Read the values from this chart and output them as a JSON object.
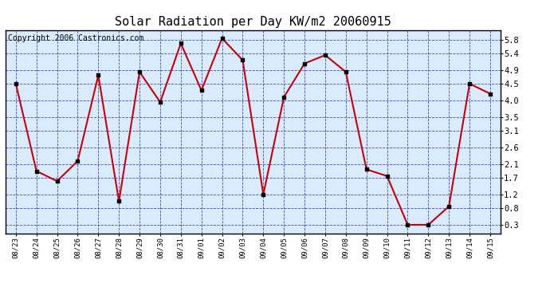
{
  "title": "Solar Radiation per Day KW/m2 20060915",
  "copyright": "Copyright 2006 Castronics.com",
  "dates": [
    "08/23",
    "08/24",
    "08/25",
    "08/26",
    "08/27",
    "08/28",
    "08/29",
    "08/30",
    "08/31",
    "09/01",
    "09/02",
    "09/03",
    "09/04",
    "09/05",
    "09/06",
    "09/07",
    "09/08",
    "09/09",
    "09/10",
    "09/11",
    "09/12",
    "09/13",
    "09/14",
    "09/15"
  ],
  "values": [
    4.5,
    1.9,
    1.6,
    2.2,
    4.75,
    1.0,
    4.85,
    3.95,
    5.7,
    4.3,
    5.85,
    5.2,
    1.2,
    4.1,
    5.1,
    5.35,
    4.85,
    1.95,
    1.75,
    0.3,
    0.3,
    0.85,
    4.5,
    4.2
  ],
  "line_color": "#cc0000",
  "marker_color": "#000000",
  "bg_color": "#d9ecff",
  "outer_bg_color": "#ffffff",
  "grid_color": "#3333cc",
  "yticks": [
    0.3,
    0.8,
    1.2,
    1.7,
    2.1,
    2.6,
    3.1,
    3.5,
    4.0,
    4.5,
    4.9,
    5.4,
    5.8
  ],
  "ylim": [
    0.05,
    6.1
  ],
  "title_fontsize": 11,
  "copyright_fontsize": 7
}
